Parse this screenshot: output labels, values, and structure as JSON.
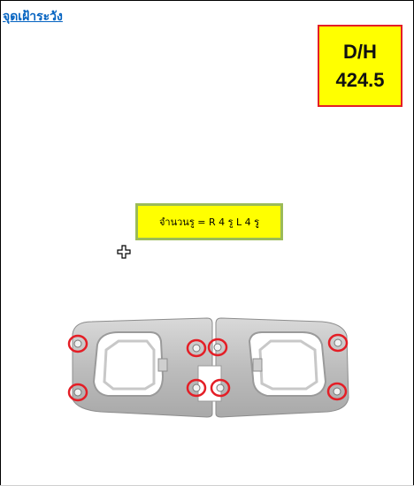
{
  "title_link": {
    "text": "จุดเฝ้าระวัง"
  },
  "dh_box": {
    "label": "D/H",
    "value": "424.5"
  },
  "note": {
    "text": "จำนวนรู = R 4 รู   L 4 รู"
  },
  "icons": {
    "cursor": "move-cursor-icon",
    "part": "bracket-part-image"
  },
  "colors": {
    "callout_fill": "#ffff00",
    "callout_border": "#e41e26",
    "note_border": "#9bbb59",
    "hole_marker": "#e41e26",
    "link": "#0563c1"
  }
}
